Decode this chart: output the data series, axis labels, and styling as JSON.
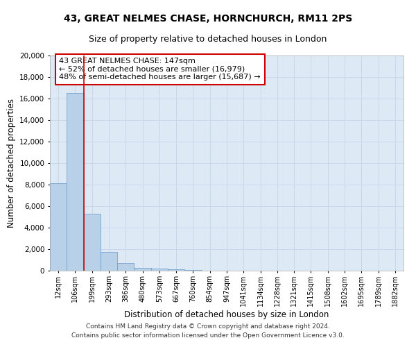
{
  "title_line1": "43, GREAT NELMES CHASE, HORNCHURCH, RM11 2PS",
  "title_line2": "Size of property relative to detached houses in London",
  "xlabel": "Distribution of detached houses by size in London",
  "ylabel": "Number of detached properties",
  "bar_color": "#b8d0e8",
  "bar_edge_color": "#6699cc",
  "grid_color": "#c8d8ea",
  "background_color": "#ddeaf5",
  "categories": [
    "12sqm",
    "106sqm",
    "199sqm",
    "293sqm",
    "386sqm",
    "480sqm",
    "573sqm",
    "667sqm",
    "760sqm",
    "854sqm",
    "947sqm",
    "1041sqm",
    "1134sqm",
    "1228sqm",
    "1321sqm",
    "1415sqm",
    "1508sqm",
    "1602sqm",
    "1695sqm",
    "1789sqm",
    "1882sqm"
  ],
  "values": [
    8100,
    16500,
    5300,
    1750,
    700,
    275,
    200,
    100,
    50,
    0,
    0,
    0,
    0,
    0,
    0,
    0,
    0,
    0,
    0,
    0,
    0
  ],
  "property_line_x": 1.5,
  "annotation_text": "43 GREAT NELMES CHASE: 147sqm\n← 52% of detached houses are smaller (16,979)\n48% of semi-detached houses are larger (15,687) →",
  "annotation_box_color": "#ffffff",
  "annotation_box_edge": "#cc0000",
  "property_line_color": "#cc0000",
  "ylim": [
    0,
    20000
  ],
  "yticks": [
    0,
    2000,
    4000,
    6000,
    8000,
    10000,
    12000,
    14000,
    16000,
    18000,
    20000
  ],
  "footer_line1": "Contains HM Land Registry data © Crown copyright and database right 2024.",
  "footer_line2": "Contains public sector information licensed under the Open Government Licence v3.0.",
  "title_fontsize": 10,
  "subtitle_fontsize": 9,
  "axis_label_fontsize": 8.5,
  "tick_fontsize": 7,
  "annotation_fontsize": 8,
  "footer_fontsize": 6.5
}
